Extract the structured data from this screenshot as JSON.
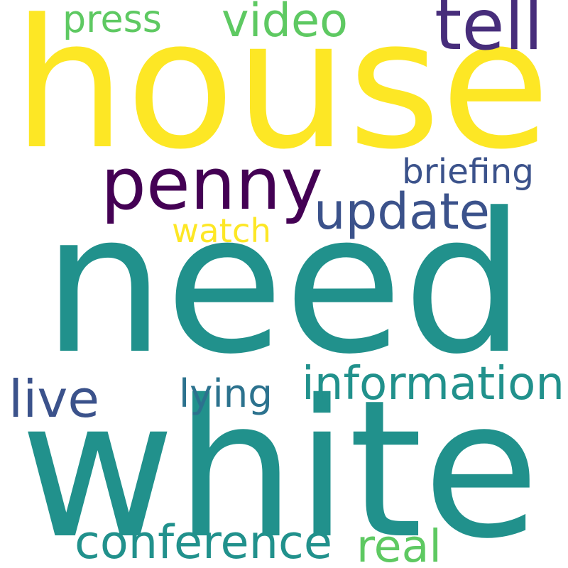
{
  "words": [
    {
      "text": "house",
      "color": "#fde725"
    },
    {
      "text": "need",
      "color": "#21918c"
    },
    {
      "text": "white",
      "color": "#21918c"
    },
    {
      "text": "penny",
      "color": "#440154"
    },
    {
      "text": "update",
      "color": "#3b528b"
    },
    {
      "text": "information",
      "color": "#21918c"
    },
    {
      "text": "conference",
      "color": "#21918c"
    },
    {
      "text": "tell",
      "color": "#472d7b"
    },
    {
      "text": "video",
      "color": "#5ec962"
    },
    {
      "text": "press",
      "color": "#5ec962"
    },
    {
      "text": "watch",
      "color": "#fde725"
    },
    {
      "text": "briefing",
      "color": "#3b528b"
    },
    {
      "text": "live",
      "color": "#3b528b"
    },
    {
      "text": "lying",
      "color": "#2c728e"
    },
    {
      "text": "real",
      "color": "#5ec962"
    }
  ]
}
